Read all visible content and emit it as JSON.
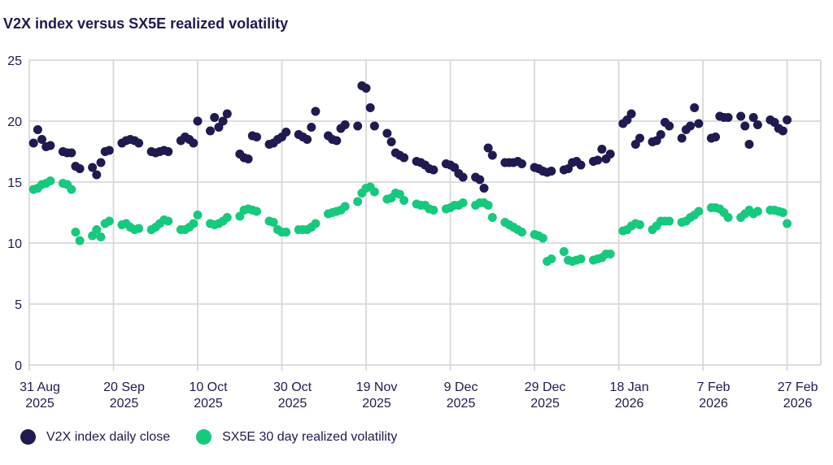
{
  "title": "V2X index versus SX5E realized volatility",
  "colors": {
    "navy": "#1f1a4f",
    "green": "#17c97d",
    "grid": "#d8d8d8",
    "text": "#1f1a4f",
    "background": "#ffffff"
  },
  "legend": [
    {
      "label": "V2X index daily close",
      "color": "#1f1a4f"
    },
    {
      "label": "SX5E 30 day realized volatility",
      "color": "#17c97d"
    }
  ],
  "chart_data": {
    "type": "scatter",
    "title": "V2X index versus SX5E realized volatility",
    "xlabel": "",
    "ylabel": "",
    "grid": true,
    "legend_position": "bottom",
    "ylim": [
      0,
      25
    ],
    "y_ticks": [
      0,
      5,
      10,
      15,
      20,
      25
    ],
    "x_axis_unit": "days since 31 Aug 2025",
    "xlim": [
      0,
      188
    ],
    "x_ticks": [
      {
        "d": 0,
        "line1": "31 Aug",
        "line2": "2025"
      },
      {
        "d": 20,
        "line1": "20 Sep",
        "line2": "2025"
      },
      {
        "d": 40,
        "line1": "10 Oct",
        "line2": "2025"
      },
      {
        "d": 60,
        "line1": "30 Oct",
        "line2": "2025"
      },
      {
        "d": 80,
        "line1": "19 Nov",
        "line2": "2025"
      },
      {
        "d": 100,
        "line1": "9 Dec",
        "line2": "2025"
      },
      {
        "d": 120,
        "line1": "29 Dec",
        "line2": "2025"
      },
      {
        "d": 140,
        "line1": "18 Jan",
        "line2": "2026"
      },
      {
        "d": 160,
        "line1": "7 Feb",
        "line2": "2026"
      },
      {
        "d": 180,
        "line1": "27 Feb",
        "line2": "2026"
      }
    ],
    "series": [
      {
        "name": "V2X index daily close",
        "color": "#1f1a4f",
        "points": [
          [
            1,
            18.2
          ],
          [
            2,
            19.3
          ],
          [
            3,
            18.5
          ],
          [
            4,
            17.9
          ],
          [
            5,
            18.0
          ],
          [
            8,
            17.5
          ],
          [
            9,
            17.4
          ],
          [
            10,
            17.4
          ],
          [
            11,
            16.3
          ],
          [
            12,
            16.1
          ],
          [
            15,
            16.2
          ],
          [
            16,
            15.6
          ],
          [
            17,
            16.6
          ],
          [
            18,
            17.5
          ],
          [
            19,
            17.6
          ],
          [
            22,
            18.2
          ],
          [
            23,
            18.4
          ],
          [
            24,
            18.5
          ],
          [
            25,
            18.4
          ],
          [
            26,
            18.2
          ],
          [
            29,
            17.5
          ],
          [
            30,
            17.4
          ],
          [
            31,
            17.5
          ],
          [
            32,
            17.6
          ],
          [
            33,
            17.5
          ],
          [
            36,
            18.4
          ],
          [
            37,
            18.7
          ],
          [
            38,
            18.5
          ],
          [
            39,
            18.2
          ],
          [
            40,
            20.0
          ],
          [
            43,
            19.2
          ],
          [
            44,
            20.3
          ],
          [
            45,
            19.5
          ],
          [
            46,
            20.0
          ],
          [
            47,
            20.6
          ],
          [
            50,
            17.3
          ],
          [
            51,
            17.0
          ],
          [
            52,
            16.9
          ],
          [
            53,
            18.8
          ],
          [
            54,
            18.7
          ],
          [
            57,
            18.1
          ],
          [
            58,
            18.2
          ],
          [
            59,
            18.5
          ],
          [
            60,
            18.7
          ],
          [
            61,
            19.1
          ],
          [
            64,
            18.9
          ],
          [
            65,
            18.7
          ],
          [
            66,
            18.5
          ],
          [
            67,
            19.5
          ],
          [
            68,
            20.8
          ],
          [
            71,
            18.8
          ],
          [
            72,
            18.5
          ],
          [
            73,
            18.4
          ],
          [
            74,
            19.4
          ],
          [
            75,
            19.7
          ],
          [
            78,
            19.6
          ],
          [
            79,
            22.9
          ],
          [
            80,
            22.7
          ],
          [
            81,
            21.1
          ],
          [
            82,
            19.6
          ],
          [
            85,
            19.0
          ],
          [
            86,
            18.3
          ],
          [
            87,
            17.4
          ],
          [
            88,
            17.2
          ],
          [
            89,
            17.0
          ],
          [
            92,
            16.7
          ],
          [
            93,
            16.6
          ],
          [
            94,
            16.4
          ],
          [
            95,
            16.1
          ],
          [
            96,
            16.0
          ],
          [
            99,
            16.5
          ],
          [
            100,
            16.4
          ],
          [
            101,
            16.2
          ],
          [
            102,
            15.7
          ],
          [
            103,
            15.4
          ],
          [
            106,
            15.4
          ],
          [
            107,
            15.2
          ],
          [
            108,
            14.5
          ],
          [
            109,
            17.8
          ],
          [
            110,
            17.2
          ],
          [
            113,
            16.6
          ],
          [
            114,
            16.6
          ],
          [
            115,
            16.6
          ],
          [
            116,
            16.7
          ],
          [
            117,
            16.5
          ],
          [
            120,
            16.2
          ],
          [
            121,
            16.1
          ],
          [
            122,
            15.9
          ],
          [
            123,
            15.8
          ],
          [
            124,
            15.9
          ],
          [
            127,
            16.0
          ],
          [
            128,
            16.1
          ],
          [
            129,
            16.6
          ],
          [
            130,
            16.7
          ],
          [
            131,
            16.4
          ],
          [
            134,
            16.7
          ],
          [
            135,
            16.8
          ],
          [
            136,
            17.7
          ],
          [
            137,
            16.9
          ],
          [
            138,
            17.3
          ],
          [
            141,
            19.8
          ],
          [
            142,
            20.1
          ],
          [
            143,
            20.6
          ],
          [
            144,
            18.1
          ],
          [
            145,
            18.6
          ],
          [
            148,
            18.3
          ],
          [
            149,
            18.4
          ],
          [
            150,
            18.9
          ],
          [
            151,
            19.9
          ],
          [
            152,
            19.6
          ],
          [
            155,
            18.6
          ],
          [
            156,
            19.3
          ],
          [
            157,
            19.6
          ],
          [
            158,
            21.1
          ],
          [
            159,
            19.8
          ],
          [
            162,
            18.6
          ],
          [
            163,
            18.7
          ],
          [
            164,
            20.4
          ],
          [
            165,
            20.3
          ],
          [
            166,
            20.3
          ],
          [
            169,
            20.4
          ],
          [
            170,
            19.6
          ],
          [
            171,
            18.1
          ],
          [
            172,
            20.3
          ],
          [
            173,
            19.7
          ],
          [
            176,
            20.1
          ],
          [
            177,
            19.9
          ],
          [
            178,
            19.4
          ],
          [
            179,
            19.2
          ],
          [
            180,
            20.1
          ]
        ]
      },
      {
        "name": "SX5E 30 day realized volatility",
        "color": "#17c97d",
        "points": [
          [
            1,
            14.4
          ],
          [
            2,
            14.5
          ],
          [
            3,
            14.8
          ],
          [
            4,
            14.9
          ],
          [
            5,
            15.1
          ],
          [
            8,
            14.9
          ],
          [
            9,
            14.8
          ],
          [
            10,
            14.4
          ],
          [
            11,
            10.9
          ],
          [
            12,
            10.2
          ],
          [
            15,
            10.6
          ],
          [
            16,
            11.1
          ],
          [
            17,
            10.5
          ],
          [
            18,
            11.6
          ],
          [
            19,
            11.8
          ],
          [
            22,
            11.5
          ],
          [
            23,
            11.6
          ],
          [
            24,
            11.3
          ],
          [
            25,
            11.1
          ],
          [
            26,
            11.2
          ],
          [
            29,
            11.1
          ],
          [
            30,
            11.3
          ],
          [
            31,
            11.6
          ],
          [
            32,
            11.9
          ],
          [
            33,
            11.8
          ],
          [
            36,
            11.1
          ],
          [
            37,
            11.1
          ],
          [
            38,
            11.3
          ],
          [
            39,
            11.6
          ],
          [
            40,
            12.3
          ],
          [
            43,
            11.6
          ],
          [
            44,
            11.5
          ],
          [
            45,
            11.6
          ],
          [
            46,
            11.8
          ],
          [
            47,
            12.1
          ],
          [
            50,
            12.2
          ],
          [
            51,
            12.7
          ],
          [
            52,
            12.8
          ],
          [
            53,
            12.7
          ],
          [
            54,
            12.6
          ],
          [
            57,
            11.8
          ],
          [
            58,
            11.7
          ],
          [
            59,
            11.1
          ],
          [
            60,
            10.9
          ],
          [
            61,
            10.9
          ],
          [
            64,
            11.1
          ],
          [
            65,
            11.1
          ],
          [
            66,
            11.1
          ],
          [
            67,
            11.3
          ],
          [
            68,
            11.6
          ],
          [
            71,
            12.4
          ],
          [
            72,
            12.5
          ],
          [
            73,
            12.6
          ],
          [
            74,
            12.7
          ],
          [
            75,
            13.0
          ],
          [
            78,
            13.4
          ],
          [
            79,
            14.1
          ],
          [
            80,
            14.5
          ],
          [
            81,
            14.6
          ],
          [
            82,
            14.2
          ],
          [
            85,
            13.6
          ],
          [
            86,
            13.7
          ],
          [
            87,
            14.1
          ],
          [
            88,
            14.0
          ],
          [
            89,
            13.5
          ],
          [
            92,
            13.2
          ],
          [
            93,
            13.1
          ],
          [
            94,
            13.1
          ],
          [
            95,
            12.8
          ],
          [
            96,
            12.7
          ],
          [
            99,
            12.8
          ],
          [
            100,
            12.9
          ],
          [
            101,
            13.1
          ],
          [
            102,
            13.1
          ],
          [
            103,
            13.3
          ],
          [
            106,
            13.1
          ],
          [
            107,
            13.3
          ],
          [
            108,
            13.3
          ],
          [
            109,
            13.1
          ],
          [
            110,
            12.1
          ],
          [
            113,
            11.7
          ],
          [
            114,
            11.5
          ],
          [
            115,
            11.3
          ],
          [
            116,
            11.1
          ],
          [
            117,
            10.9
          ],
          [
            120,
            10.7
          ],
          [
            121,
            10.6
          ],
          [
            122,
            10.4
          ],
          [
            123,
            8.5
          ],
          [
            124,
            8.7
          ],
          [
            127,
            9.3
          ],
          [
            128,
            8.6
          ],
          [
            129,
            8.5
          ],
          [
            130,
            8.6
          ],
          [
            131,
            8.7
          ],
          [
            134,
            8.6
          ],
          [
            135,
            8.7
          ],
          [
            136,
            8.8
          ],
          [
            137,
            9.1
          ],
          [
            138,
            9.1
          ],
          [
            141,
            11.0
          ],
          [
            142,
            11.1
          ],
          [
            143,
            11.4
          ],
          [
            144,
            11.6
          ],
          [
            145,
            11.5
          ],
          [
            148,
            11.1
          ],
          [
            149,
            11.4
          ],
          [
            150,
            11.8
          ],
          [
            151,
            11.8
          ],
          [
            152,
            11.8
          ],
          [
            155,
            11.7
          ],
          [
            156,
            11.8
          ],
          [
            157,
            12.1
          ],
          [
            158,
            12.3
          ],
          [
            159,
            12.6
          ],
          [
            162,
            12.9
          ],
          [
            163,
            12.9
          ],
          [
            164,
            12.8
          ],
          [
            165,
            12.5
          ],
          [
            166,
            12.1
          ],
          [
            169,
            12.1
          ],
          [
            170,
            12.4
          ],
          [
            171,
            12.7
          ],
          [
            172,
            12.4
          ],
          [
            173,
            12.6
          ],
          [
            176,
            12.7
          ],
          [
            177,
            12.7
          ],
          [
            178,
            12.6
          ],
          [
            179,
            12.5
          ],
          [
            180,
            11.6
          ]
        ]
      }
    ]
  }
}
